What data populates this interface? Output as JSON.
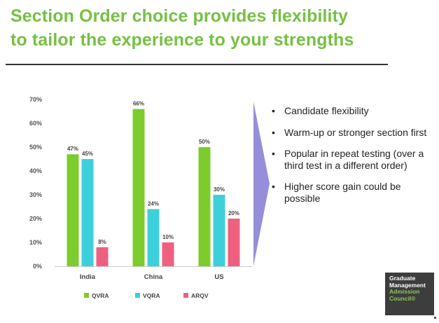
{
  "slide": {
    "title_line1": "Section Order choice provides flexibility",
    "title_line2": "to tailor the experience to your strengths"
  },
  "bullets": [
    "Candidate flexibility",
    "Warm-up or stronger section first",
    "Popular in repeat testing (over a third test in a different order)",
    "Higher score gain could be possible"
  ],
  "logo": {
    "line1": "Graduate",
    "line2": "Management",
    "line3": "Admission",
    "line4": "Council®"
  },
  "colors": {
    "title": "#76c043",
    "qvra": "#7ccc2e",
    "vqra": "#3ecfdc",
    "arqv": "#ef6080",
    "arrow": "#8b82d6",
    "logo_bg": "#3d3d3d",
    "logo_accent": "#8ec65a"
  },
  "chart_data": {
    "type": "bar",
    "categories": [
      "India",
      "China",
      "US"
    ],
    "series": [
      {
        "name": "QVRA",
        "values": [
          47,
          66,
          50
        ],
        "labels": [
          "47%",
          "66%",
          "50%"
        ]
      },
      {
        "name": "VQRA",
        "values": [
          45,
          24,
          30
        ],
        "labels": [
          "45%",
          "24%",
          "30%"
        ]
      },
      {
        "name": "ARQV",
        "values": [
          8,
          10,
          20
        ],
        "labels": [
          "8%",
          "10%",
          "20%"
        ]
      }
    ],
    "yticks": [
      0,
      10,
      20,
      30,
      40,
      50,
      60,
      70
    ],
    "ytick_labels": [
      "0%",
      "10%",
      "20%",
      "30%",
      "40%",
      "50%",
      "60%",
      "70%"
    ],
    "ylim": [
      0,
      70
    ],
    "grid": false,
    "legend_position": "bottom",
    "title": "",
    "xlabel": "",
    "ylabel": ""
  }
}
